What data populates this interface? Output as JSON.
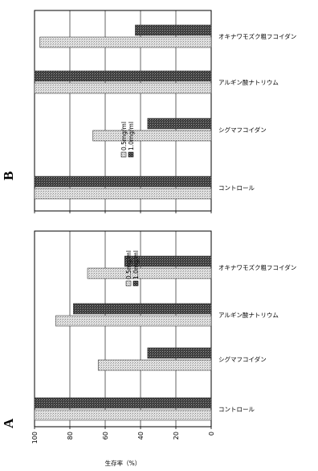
{
  "chart_data": [
    {
      "panel_label": "A",
      "type": "bar",
      "orientation": "horizontal",
      "categories": [
        "コントロール",
        "シグマフコイダン",
        "アルギン酸ナトリウム",
        "オキナワモズク粗フコイダン"
      ],
      "series": [
        {
          "name": "0.5mg/ml",
          "values": [
            100,
            64,
            88,
            70
          ]
        },
        {
          "name": "1.0mg/ml",
          "values": [
            100,
            36,
            78,
            49
          ]
        }
      ],
      "xlabel": "生存率（%）",
      "xlim": [
        0,
        100
      ],
      "xticks": [
        "100",
        "80",
        "60",
        "40",
        "20",
        "0"
      ],
      "grid": true,
      "legend_position": "top"
    },
    {
      "panel_label": "B",
      "type": "bar",
      "orientation": "horizontal",
      "categories": [
        "コントロール",
        "シグマフコイダン",
        "アルギン酸ナトリウム",
        "オキナワモズク粗フコイダン"
      ],
      "series": [
        {
          "name": "0.5mg/ml",
          "values": [
            100,
            67,
            100,
            97
          ]
        },
        {
          "name": "1.0mg/ml",
          "values": [
            100,
            36,
            100,
            43
          ]
        }
      ],
      "xlim": [
        0,
        100
      ],
      "grid": true,
      "legend_position": "top"
    }
  ],
  "colors": {
    "series_light": "#d2d2d2",
    "series_dark": "#4a4a4a",
    "axis": "#000000",
    "grid": "#000000"
  }
}
